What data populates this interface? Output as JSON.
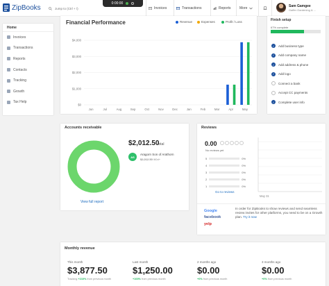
{
  "app": {
    "name": "ZipBooks"
  },
  "search": {
    "placeholder": "Jump to (Ctrl + /)"
  },
  "timer": {
    "value": "0:00:00"
  },
  "nav": {
    "invoices": "Invoices",
    "transactions": "Transactions",
    "reports": "Reports",
    "more": "More"
  },
  "user": {
    "name": "Sam Gamgee",
    "company": "Gaffer Gardening & ..."
  },
  "sidebar": {
    "header": "Home",
    "items": [
      {
        "label": "Invoices",
        "icon": "invoice-icon"
      },
      {
        "label": "Transactions",
        "icon": "transactions-icon"
      },
      {
        "label": "Reports",
        "icon": "reports-icon"
      },
      {
        "label": "Contacts",
        "icon": "contacts-icon"
      },
      {
        "label": "Tracking",
        "icon": "tracking-icon"
      },
      {
        "label": "Growth",
        "icon": "growth-icon"
      },
      {
        "label": "Tax Help",
        "icon": "tax-help-icon"
      }
    ]
  },
  "financial": {
    "title": "Financial Performance",
    "legend": [
      {
        "label": "Revenue",
        "color": "#1b5fd6"
      },
      {
        "label": "Expenses",
        "color": "#f2a800"
      },
      {
        "label": "Profit / Loss",
        "color": "#20b85d"
      }
    ]
  },
  "chart_data": {
    "type": "bar",
    "title": "Financial Performance",
    "categories": [
      "Jun",
      "Jul",
      "Aug",
      "Sep",
      "Oct",
      "Nov",
      "Dec",
      "Jan",
      "Feb",
      "Mar",
      "Apr",
      "May"
    ],
    "series": [
      {
        "name": "Revenue",
        "color": "#1b5fd6",
        "values": [
          0,
          0,
          0,
          0,
          0,
          0,
          0,
          0,
          0,
          0,
          1250,
          3877.5
        ]
      },
      {
        "name": "Expenses",
        "color": "#f2a800",
        "values": [
          0,
          0,
          0,
          0,
          0,
          0,
          0,
          0,
          0,
          0,
          0,
          0
        ]
      },
      {
        "name": "Profit / Loss",
        "color": "#20b85d",
        "values": [
          0,
          0,
          0,
          0,
          0,
          0,
          0,
          0,
          0,
          0,
          1250,
          3877.5
        ]
      }
    ],
    "yticks": [
      "$4,000",
      "$3,000",
      "$2,000",
      "$1,000",
      "$0"
    ],
    "ylim": [
      0,
      4000
    ],
    "grid": true,
    "legend_position": "top-right"
  },
  "setup": {
    "title": "Finish setup",
    "percent_label": "67% complete",
    "percent": 67,
    "tasks": [
      {
        "label": "Add business type",
        "done": true
      },
      {
        "label": "Add company name",
        "done": true
      },
      {
        "label": "Add address & phone",
        "done": true
      },
      {
        "label": "Add logo",
        "done": true
      },
      {
        "label": "Connect a bank",
        "done": false
      },
      {
        "label": "Accept CC payments",
        "done": false
      },
      {
        "label": "Complete user info",
        "done": true
      }
    ]
  },
  "receivable": {
    "title": "Accounts receivable",
    "amount": "$2,012.50",
    "total_label": "total",
    "badge": "AS",
    "customer": "Aragorn Son of Arathorn",
    "customer_amount": "$2,012.50",
    "customer_note": "/60d+",
    "link": "View full report",
    "ring_color": "#6cd66c",
    "ring_fraction": 1
  },
  "reviews": {
    "title": "Reviews",
    "score": "0.00",
    "subtitle": "No reviews yet",
    "rows": [
      {
        "star": "5",
        "pct": "0%"
      },
      {
        "star": "4",
        "pct": "0%"
      },
      {
        "star": "3",
        "pct": "0%"
      },
      {
        "star": "2",
        "pct": "0%"
      },
      {
        "star": "1",
        "pct": "0%"
      }
    ],
    "link": "Go to reviews",
    "axis_label": "May 31",
    "brands": [
      "Google",
      "facebook",
      "yelp"
    ],
    "message": "In order for ZipBooks to show reviews and send seamless review invites for other platforms, you need to be on a Growth plan.",
    "message_link": "Try it now"
  },
  "monthly": {
    "title": "Monthly revenue",
    "cols": [
      {
        "label": "This month",
        "value": "$3,877.50",
        "tracking": "Tracking",
        "change": "+210%",
        "suffix": "from previous month"
      },
      {
        "label": "Last month",
        "value": "$1,250.00",
        "tracking": "",
        "change": "+100%",
        "suffix": "from previous month"
      },
      {
        "label": "2 months ago",
        "value": "$0.00",
        "tracking": "",
        "change": "+0%",
        "suffix": "from previous month"
      },
      {
        "label": "3 months ago",
        "value": "$0.00",
        "tracking": "",
        "change": "+0%",
        "suffix": "from previous month"
      }
    ]
  }
}
